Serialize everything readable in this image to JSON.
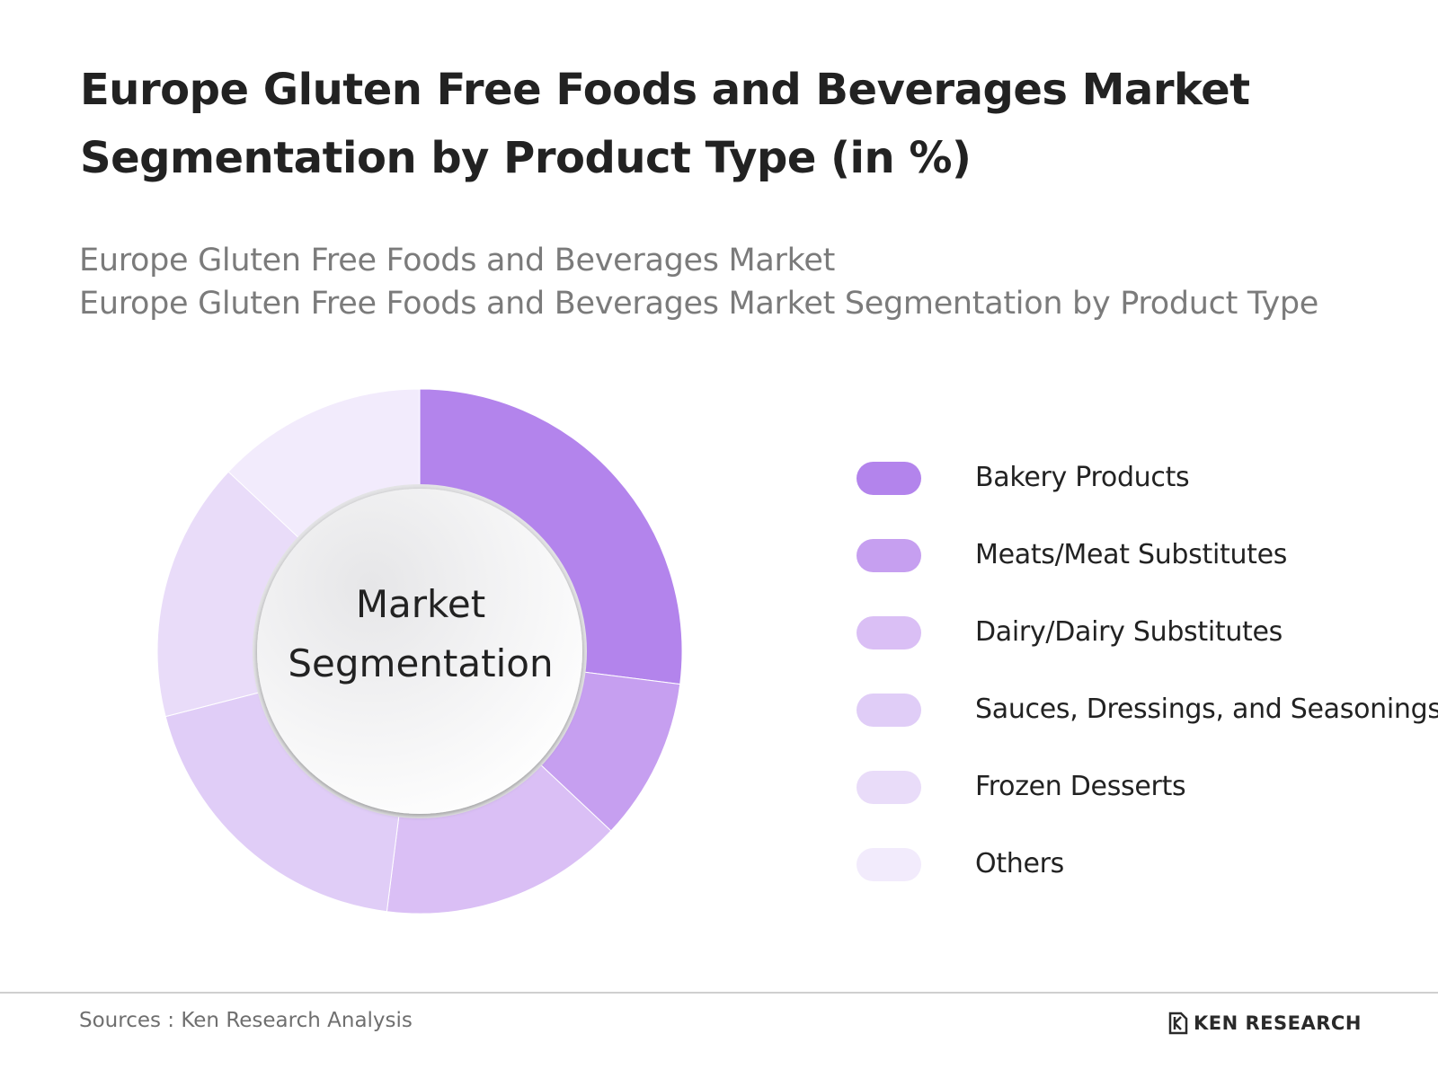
{
  "title": {
    "line1": "Europe Gluten Free Foods and Beverages Market",
    "line2": "Segmentation by Product Type (in %)"
  },
  "subtitle": {
    "line1": "Europe Gluten Free Foods and Beverages Market",
    "line2": "Europe Gluten Free Foods and Beverages Market Segmentation by Product Type"
  },
  "center_label": {
    "line1": "Market",
    "line2": "Segmentation"
  },
  "chart_data": {
    "type": "pie",
    "style": "donut",
    "categories": [
      "Bakery Products",
      "Meats/Meat Substitutes",
      "Dairy/Dairy Substitutes",
      "Sauces, Dressings, and Seasonings",
      "Frozen Desserts",
      "Others"
    ],
    "values": [
      27,
      10,
      15,
      19,
      16,
      13
    ],
    "colors": [
      "#b384ec",
      "#c69ff0",
      "#dabff5",
      "#e0cdf7",
      "#e9dcf9",
      "#f2ebfc"
    ],
    "legend_position": "right"
  },
  "footer": {
    "source": "Sources : Ken Research Analysis",
    "brand": "KEN RESEARCH"
  }
}
